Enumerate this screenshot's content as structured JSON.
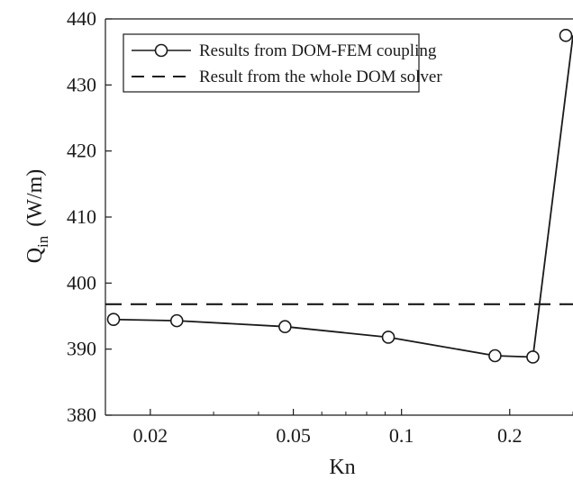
{
  "chart_data": {
    "type": "line",
    "title": "",
    "xlabel": "Kn",
    "ylabel": {
      "main": "Q",
      "subscript": "in",
      "unit": "(W/m)"
    },
    "x_scale": "log",
    "xlim": [
      0.015,
      0.3
    ],
    "ylim": [
      380,
      440
    ],
    "x_ticks": [
      0.02,
      0.05,
      0.1,
      0.2
    ],
    "x_tick_labels": [
      "0.02",
      "0.05",
      "0.1",
      "0.2"
    ],
    "y_ticks": [
      380,
      390,
      400,
      410,
      420,
      430,
      440
    ],
    "y_tick_labels": [
      "380",
      "390",
      "400",
      "410",
      "420",
      "430",
      "440"
    ],
    "grid": false,
    "legend_position": "top-right",
    "series": [
      {
        "name": "Results from DOM-FEM coupling",
        "style": "solid-line-with-circle-markers",
        "x": [
          0.0158,
          0.0237,
          0.0474,
          0.0919,
          0.182,
          0.232,
          0.3
        ],
        "y": [
          394.5,
          394.3,
          393.4,
          391.8,
          389.0,
          388.8,
          437.5
        ]
      },
      {
        "name": "Result from the whole DOM solver",
        "style": "dashed-line",
        "y": 396.8
      }
    ],
    "colors": {
      "line": "#1a1a1a",
      "axis": "#1a1a1a",
      "background": "#ffffff"
    }
  }
}
